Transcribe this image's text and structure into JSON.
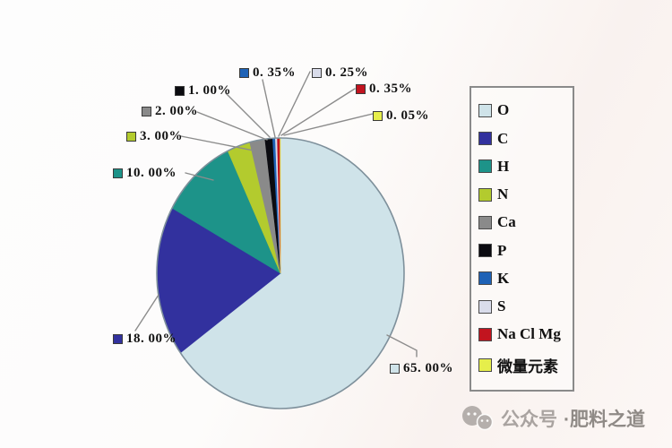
{
  "page": {
    "background": "#fdfcfb"
  },
  "chart_data": {
    "type": "pie",
    "title": "",
    "unit": "%",
    "start_angle_deg": 0,
    "direction": "clockwise",
    "legend_position": "right",
    "total": 100,
    "slices": [
      {
        "label": "O",
        "value": 65.0,
        "callout": "65. 00%",
        "color": "#cfe3e9"
      },
      {
        "label": "C",
        "value": 18.0,
        "callout": "18. 00%",
        "color": "#32319e"
      },
      {
        "label": "H",
        "value": 10.0,
        "callout": "10. 00%",
        "color": "#1d9389"
      },
      {
        "label": "N",
        "value": 3.0,
        "callout": "3. 00%",
        "color": "#b3cb2e"
      },
      {
        "label": "Ca",
        "value": 2.0,
        "callout": "2. 00%",
        "color": "#8a8a8a"
      },
      {
        "label": "P",
        "value": 1.0,
        "callout": "1. 00%",
        "color": "#0b0b10"
      },
      {
        "label": "K",
        "value": 0.35,
        "callout": "0. 35%",
        "color": "#1e62b6"
      },
      {
        "label": "S",
        "value": 0.25,
        "callout": "0. 25%",
        "color": "#d9dcea"
      },
      {
        "label": "Na Cl Mg",
        "value": 0.35,
        "callout": "0. 35%",
        "color": "#c2141f"
      },
      {
        "label": "微量元素",
        "value": 0.05,
        "callout": "0. 05%",
        "color": "#e6ee4b"
      }
    ]
  },
  "watermark": {
    "prefix": "公众号",
    "suffix": "·肥料之道",
    "icon": "wechat-icon"
  }
}
